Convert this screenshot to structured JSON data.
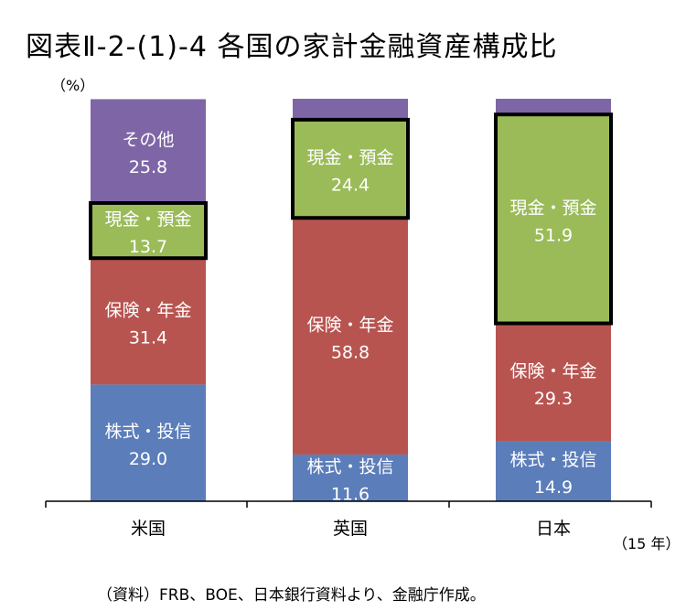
{
  "title": "図表Ⅱ-2-(1)-4 各国の家計金融資産構成比",
  "unit_label": "（%）",
  "year_label": "（15 年）",
  "source_note": "（資料）FRB、BOE、日本銀行資料より、金融庁作成。",
  "chart_data": {
    "type": "bar",
    "stacked": true,
    "categories": [
      "米国",
      "英国",
      "日本"
    ],
    "ylim": [
      0,
      100
    ],
    "series": [
      {
        "name": "株式・投信",
        "color": "#5B7DBA",
        "values": [
          29.0,
          11.6,
          14.9
        ],
        "value_labels": [
          "29.0",
          "11.6",
          "14.9"
        ]
      },
      {
        "name": "保険・年金",
        "color": "#B85450",
        "values": [
          31.4,
          58.8,
          29.3
        ],
        "value_labels": [
          "31.4",
          "58.8",
          "29.3"
        ]
      },
      {
        "name": "現金・預金",
        "color": "#9BBB59",
        "values": [
          13.7,
          24.4,
          51.9
        ],
        "value_labels": [
          "13.7",
          "24.4",
          "51.9"
        ],
        "highlighted": true
      },
      {
        "name": "その他",
        "color": "#7E66A6",
        "values": [
          25.8,
          5.2,
          3.9
        ],
        "value_labels": [
          "25.8",
          "",
          ""
        ]
      }
    ]
  }
}
